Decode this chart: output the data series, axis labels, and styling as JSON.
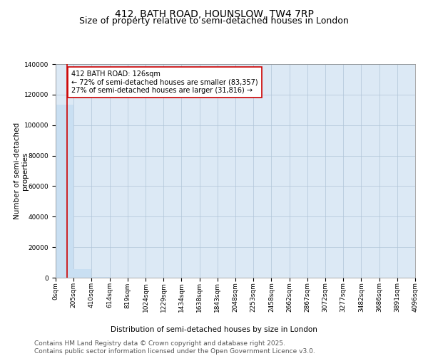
{
  "title_line1": "412, BATH ROAD, HOUNSLOW, TW4 7RP",
  "title_line2": "Size of property relative to semi-detached houses in London",
  "xlabel": "Distribution of semi-detached houses by size in London",
  "ylabel": "Number of semi-detached\nproperties",
  "footer_line1": "Contains HM Land Registry data © Crown copyright and database right 2025.",
  "footer_line2": "Contains public sector information licensed under the Open Government Licence v3.0.",
  "annotation_line1": "412 BATH ROAD: 126sqm",
  "annotation_line2": "← 72% of semi-detached houses are smaller (83,357)",
  "annotation_line3": "27% of semi-detached houses are larger (31,816) →",
  "property_size": 126,
  "bar_color": "#c9dff2",
  "bar_edge_color": "#c9dff2",
  "redline_color": "#cc0000",
  "annotation_box_edgecolor": "#cc0000",
  "annotation_box_facecolor": "#ffffff",
  "background_color": "#ffffff",
  "plot_bg_color": "#dce9f5",
  "grid_color": "#b0c4d8",
  "bin_edges": [
    0,
    205,
    410,
    614,
    819,
    1024,
    1229,
    1434,
    1638,
    1843,
    2048,
    2253,
    2458,
    2662,
    2867,
    3072,
    3277,
    3482,
    3686,
    3891,
    4096
  ],
  "bin_counts": [
    113173,
    5800,
    600,
    130,
    50,
    25,
    15,
    10,
    8,
    6,
    5,
    4,
    3,
    3,
    2,
    2,
    2,
    1,
    1,
    1
  ],
  "ylim": [
    0,
    140000
  ],
  "yticks": [
    0,
    20000,
    40000,
    60000,
    80000,
    100000,
    120000,
    140000
  ],
  "title_fontsize": 10,
  "subtitle_fontsize": 9,
  "axis_fontsize": 7.5,
  "tick_fontsize": 6.5,
  "annotation_fontsize": 7,
  "footer_fontsize": 6.5
}
